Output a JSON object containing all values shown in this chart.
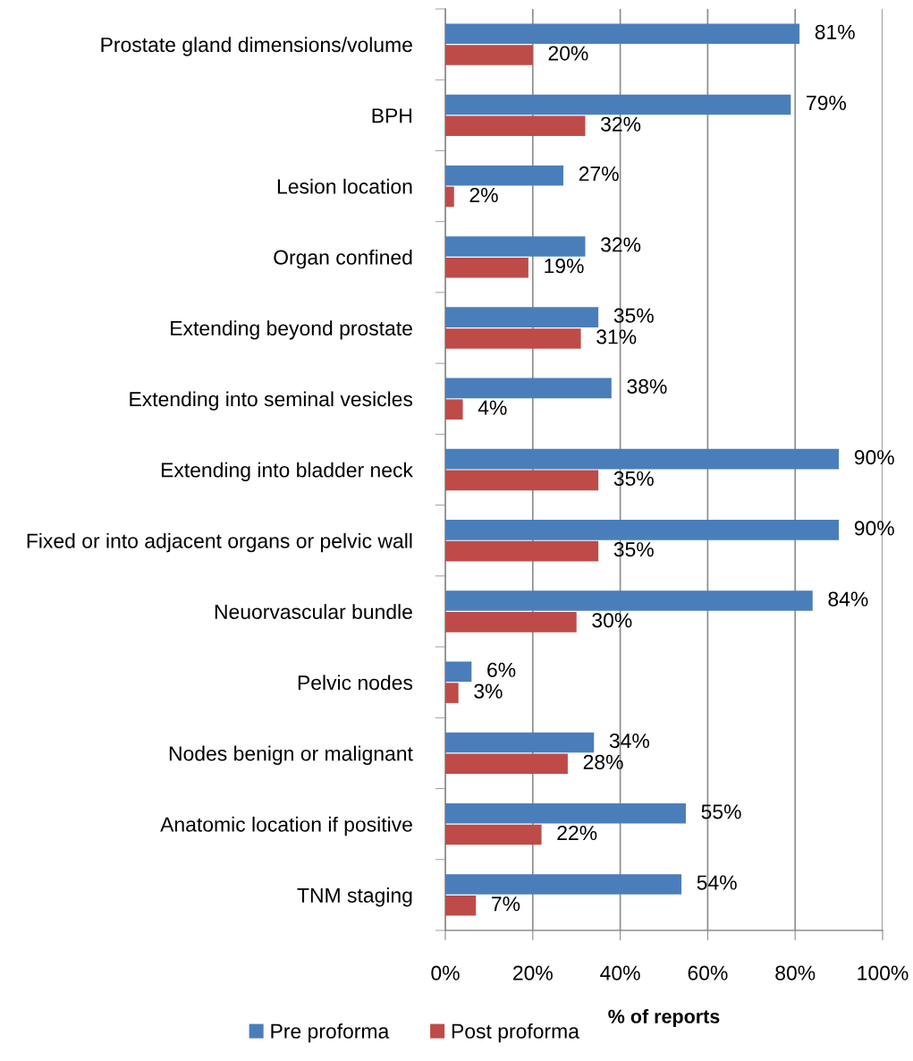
{
  "chart_data": {
    "type": "bar",
    "orientation": "horizontal",
    "categories": [
      "Prostate gland dimensions/volume",
      "BPH",
      "Lesion location",
      "Organ confined",
      "Extending beyond prostate",
      "Extending into seminal vesicles",
      "Extending into bladder neck",
      "Fixed or into adjacent organs or pelvic wall",
      "Neuorvascular bundle",
      "Pelvic nodes",
      "Nodes benign or malignant",
      "Anatomic location if positive",
      "TNM staging"
    ],
    "series": [
      {
        "name": "Pre proforma",
        "color": "#4a7ebb",
        "values": [
          81,
          79,
          27,
          32,
          35,
          38,
          90,
          90,
          84,
          6,
          34,
          55,
          54
        ],
        "value_labels": [
          "81%",
          "79%",
          "27%",
          "32%",
          "35%",
          "38%",
          "90%",
          "90%",
          "84%",
          "6%",
          "34%",
          "55%",
          "54%"
        ]
      },
      {
        "name": "Post proforma",
        "color": "#be4b48",
        "values": [
          20,
          32,
          2,
          19,
          31,
          4,
          35,
          35,
          30,
          3,
          28,
          22,
          7
        ],
        "value_labels": [
          "20%",
          "32%",
          "2%",
          "19%",
          "31%",
          "4%",
          "35%",
          "35%",
          "30%",
          "3%",
          "28%",
          "22%",
          "7%"
        ]
      }
    ],
    "xlabel": "% of reports",
    "xlim": [
      0,
      100
    ],
    "xticks": [
      {
        "value": 0,
        "label": "0%"
      },
      {
        "value": 20,
        "label": "20%"
      },
      {
        "value": 40,
        "label": "40%"
      },
      {
        "value": 60,
        "label": "60%"
      },
      {
        "value": 80,
        "label": "80%"
      },
      {
        "value": 100,
        "label": "100%"
      }
    ],
    "grid": "x",
    "legend": "bottom"
  }
}
